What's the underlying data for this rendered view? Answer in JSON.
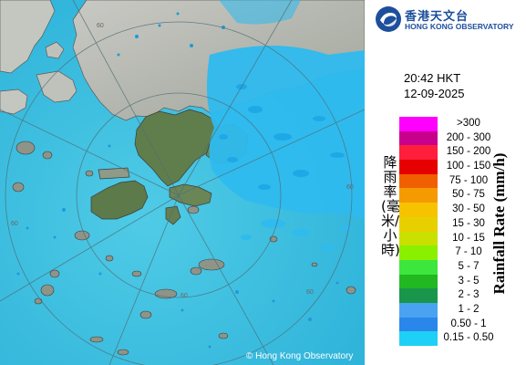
{
  "header": {
    "logo_cn": "香港天文台",
    "logo_en": "HONG KONG OBSERVATORY",
    "time": "20:42 HKT",
    "date": "12-09-2025"
  },
  "legend": {
    "axis_label_en": "Rainfall Rate (mm/h)",
    "axis_label_cn": "降雨率(毫米/小時)",
    "scale": [
      {
        "label": ">300",
        "color": "#ff00ff"
      },
      {
        "label": "200 - 300",
        "color": "#c8008c"
      },
      {
        "label": "150 - 200",
        "color": "#ff1f3c"
      },
      {
        "label": "100 - 150",
        "color": "#e60000"
      },
      {
        "label": "75 - 100",
        "color": "#f06000"
      },
      {
        "label": "50 - 75",
        "color": "#f59a00"
      },
      {
        "label": "30 - 50",
        "color": "#f7c300"
      },
      {
        "label": "15 - 30",
        "color": "#e8d000"
      },
      {
        "label": "10 - 15",
        "color": "#c9e000"
      },
      {
        "label": "7 - 10",
        "color": "#8bf000"
      },
      {
        "label": "5 - 7",
        "color": "#3ce63c"
      },
      {
        "label": "3 - 5",
        "color": "#22b822"
      },
      {
        "label": "2 - 3",
        "color": "#19964b"
      },
      {
        "label": "1 - 2",
        "color": "#4aa3f0"
      },
      {
        "label": "0.50 - 1",
        "color": "#2a86ea"
      },
      {
        "label": "0.15 - 0.50",
        "color": "#1ed0f5"
      }
    ]
  },
  "map": {
    "copyright": "© Hong Kong Observatory",
    "ring_labels": [
      "60",
      "60",
      "60",
      "60",
      "60"
    ],
    "sea_color": "#3dc1e0",
    "rain_color": "#2fbbef"
  }
}
